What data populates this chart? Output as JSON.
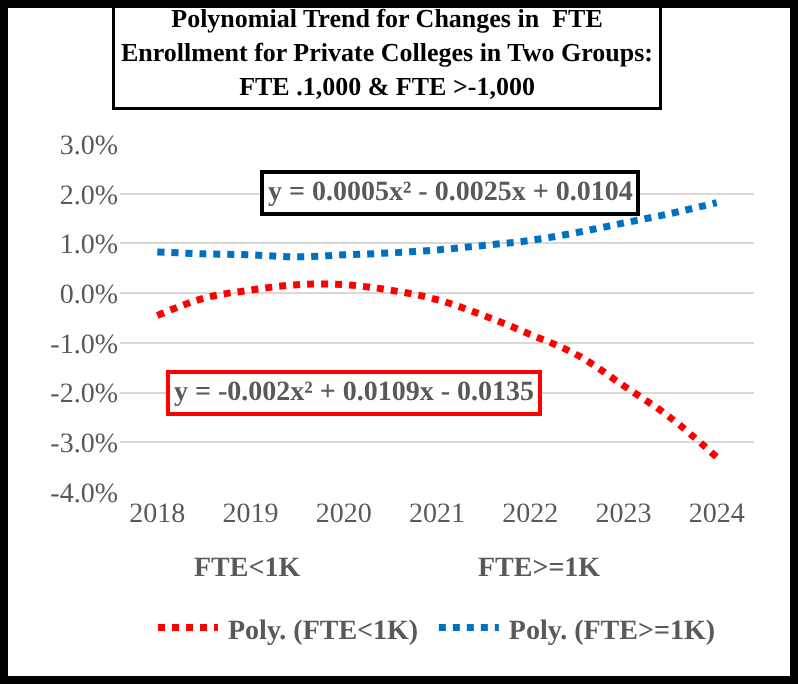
{
  "chart_data": {
    "type": "line",
    "title": "Polynomial Trend for Changes in  FTE Enrollment for Private Colleges in Two Groups: FTE .1,000 & FTE >-1,000",
    "x": [
      2018,
      2018.5,
      2019,
      2019.5,
      2020,
      2020.5,
      2021,
      2021.5,
      2022,
      2022.5,
      2023,
      2023.5,
      2024
    ],
    "series": [
      {
        "name": "Poly. (FTE<1K)",
        "color": "#ff0000",
        "values": [
          -0.45,
          -0.1,
          0.06,
          0.17,
          0.17,
          0.06,
          -0.13,
          -0.45,
          -0.83,
          -1.24,
          -1.86,
          -2.5,
          -3.3
        ]
      },
      {
        "name": "Poly. (FTE>=1K)",
        "color": "#0070c0",
        "values": [
          0.83,
          0.79,
          0.77,
          0.73,
          0.77,
          0.81,
          0.87,
          0.96,
          1.06,
          1.22,
          1.41,
          1.6,
          1.82
        ]
      }
    ],
    "xlim": [
      2017.6,
      2024.4
    ],
    "xticks": [
      2018,
      2019,
      2020,
      2021,
      2022,
      2023,
      2024
    ],
    "ylim": [
      -4,
      3
    ],
    "yticks": [
      {
        "value": -4,
        "label": "-4.0%"
      },
      {
        "value": -3,
        "label": "-3.0%"
      },
      {
        "value": -2,
        "label": "-2.0%"
      },
      {
        "value": -1,
        "label": "-1.0%"
      },
      {
        "value": 0,
        "label": "0.0%"
      },
      {
        "value": 1,
        "label": "1.0%"
      },
      {
        "value": 2,
        "label": "2.0%"
      },
      {
        "value": 3,
        "label": "3.0%"
      }
    ],
    "annotations": [
      "y = 0.0005x² - 0.0025x + 0.0104",
      "y = -0.002x² + 0.0109x - 0.0135",
      "FTE<1K",
      "FTE>=1K"
    ],
    "grid": "y",
    "legend": "bottom",
    "marker": "none",
    "line_style": "dotted"
  }
}
